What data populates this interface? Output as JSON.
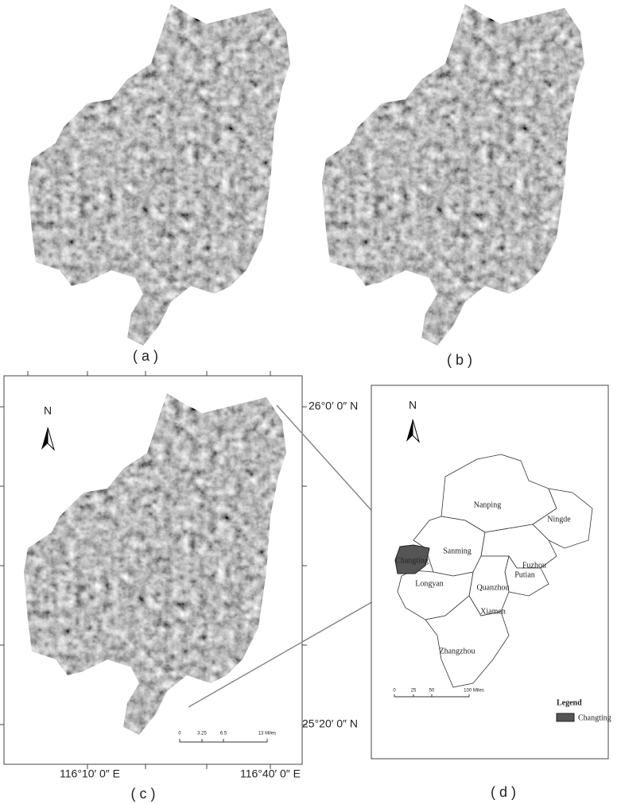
{
  "panel_a": {
    "label": "( a )"
  },
  "panel_b": {
    "label": "( b )"
  },
  "panel_c": {
    "label": "( c )",
    "north": "N",
    "lat_labels": [
      "26°0′ 0″ N",
      "25°20′ 0″ N"
    ],
    "lon_labels": [
      "116°10′ 0″ E",
      "116°40′ 0″ E"
    ],
    "scale_bar": [
      "0",
      "3.25",
      "6.5",
      "13 Miles"
    ]
  },
  "panel_d": {
    "label": "( d )",
    "north": "N",
    "regions": [
      "Nanping",
      "Ningde",
      "Sanming",
      "Fuzhou",
      "Longyan",
      "Putian",
      "Quanzhou",
      "Xiamen",
      "Zhangzhou"
    ],
    "highlight_label": "Changting",
    "scale_bar": [
      "0",
      "25",
      "50",
      "100 Miles"
    ],
    "legend": {
      "title": "Legend",
      "items": [
        "Changting"
      ]
    }
  }
}
